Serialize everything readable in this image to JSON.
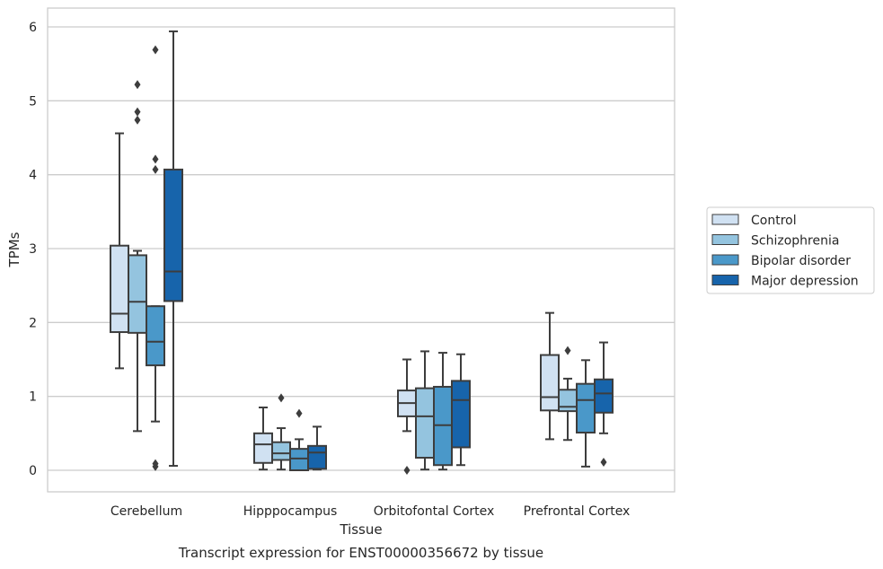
{
  "chart_data": {
    "type": "boxplot",
    "title": "Transcript expression for ENST00000356672 by tissue",
    "xlabel": "Tissue",
    "ylabel": "TPMs",
    "categories": [
      "Cerebellum",
      "Hipppocampus",
      "Orbitofontal Cortex",
      "Prefrontal Cortex"
    ],
    "ylim": [
      -0.28,
      6.25
    ],
    "yticks": [
      0,
      1,
      2,
      3,
      4,
      5,
      6
    ],
    "grid": "horizontal",
    "legend_position": "right",
    "series": [
      {
        "name": "Control",
        "color": "#d0e1f2",
        "boxes": [
          {
            "min": 1.38,
            "q1": 1.87,
            "median": 2.12,
            "q3": 3.04,
            "max": 4.56,
            "outliers": []
          },
          {
            "min": 0.01,
            "q1": 0.1,
            "median": 0.35,
            "q3": 0.5,
            "max": 0.85,
            "outliers": []
          },
          {
            "min": 0.53,
            "q1": 0.73,
            "median": 0.91,
            "q3": 1.08,
            "max": 1.5,
            "outliers": [
              0.0
            ]
          },
          {
            "min": 0.42,
            "q1": 0.81,
            "median": 0.99,
            "q3": 1.56,
            "max": 2.13,
            "outliers": []
          }
        ]
      },
      {
        "name": "Schizophrenia",
        "color": "#94c4df",
        "boxes": [
          {
            "min": 0.53,
            "q1": 1.86,
            "median": 2.28,
            "q3": 2.91,
            "max": 2.97,
            "outliers": [
              4.74,
              4.85,
              5.22
            ]
          },
          {
            "min": 0.01,
            "q1": 0.14,
            "median": 0.23,
            "q3": 0.38,
            "max": 0.57,
            "outliers": [
              0.98
            ]
          },
          {
            "min": 0.01,
            "q1": 0.17,
            "median": 0.73,
            "q3": 1.11,
            "max": 1.61,
            "outliers": []
          },
          {
            "min": 0.41,
            "q1": 0.8,
            "median": 0.86,
            "q3": 1.09,
            "max": 1.24,
            "outliers": [
              1.62
            ]
          }
        ]
      },
      {
        "name": "Bipolar disorder",
        "color": "#4a98c9",
        "boxes": [
          {
            "min": 0.66,
            "q1": 1.42,
            "median": 1.74,
            "q3": 2.22,
            "max": 2.22,
            "outliers": [
              0.05,
              0.09,
              4.07,
              4.21,
              5.69
            ]
          },
          {
            "min": 0.0,
            "q1": 0.0,
            "median": 0.16,
            "q3": 0.29,
            "max": 0.42,
            "outliers": [
              0.77
            ]
          },
          {
            "min": 0.01,
            "q1": 0.07,
            "median": 0.61,
            "q3": 1.13,
            "max": 1.59,
            "outliers": []
          },
          {
            "min": 0.05,
            "q1": 0.51,
            "median": 0.95,
            "q3": 1.17,
            "max": 1.49,
            "outliers": []
          }
        ]
      },
      {
        "name": "Major depression",
        "color": "#1764ab",
        "boxes": [
          {
            "min": 0.06,
            "q1": 2.29,
            "median": 2.69,
            "q3": 4.07,
            "max": 5.94,
            "outliers": []
          },
          {
            "min": 0.01,
            "q1": 0.02,
            "median": 0.24,
            "q3": 0.33,
            "max": 0.59,
            "outliers": []
          },
          {
            "min": 0.07,
            "q1": 0.31,
            "median": 0.95,
            "q3": 1.21,
            "max": 1.57,
            "outliers": []
          },
          {
            "min": 0.5,
            "q1": 0.78,
            "median": 1.04,
            "q3": 1.23,
            "max": 1.73,
            "outliers": [
              0.11
            ]
          }
        ]
      }
    ]
  }
}
